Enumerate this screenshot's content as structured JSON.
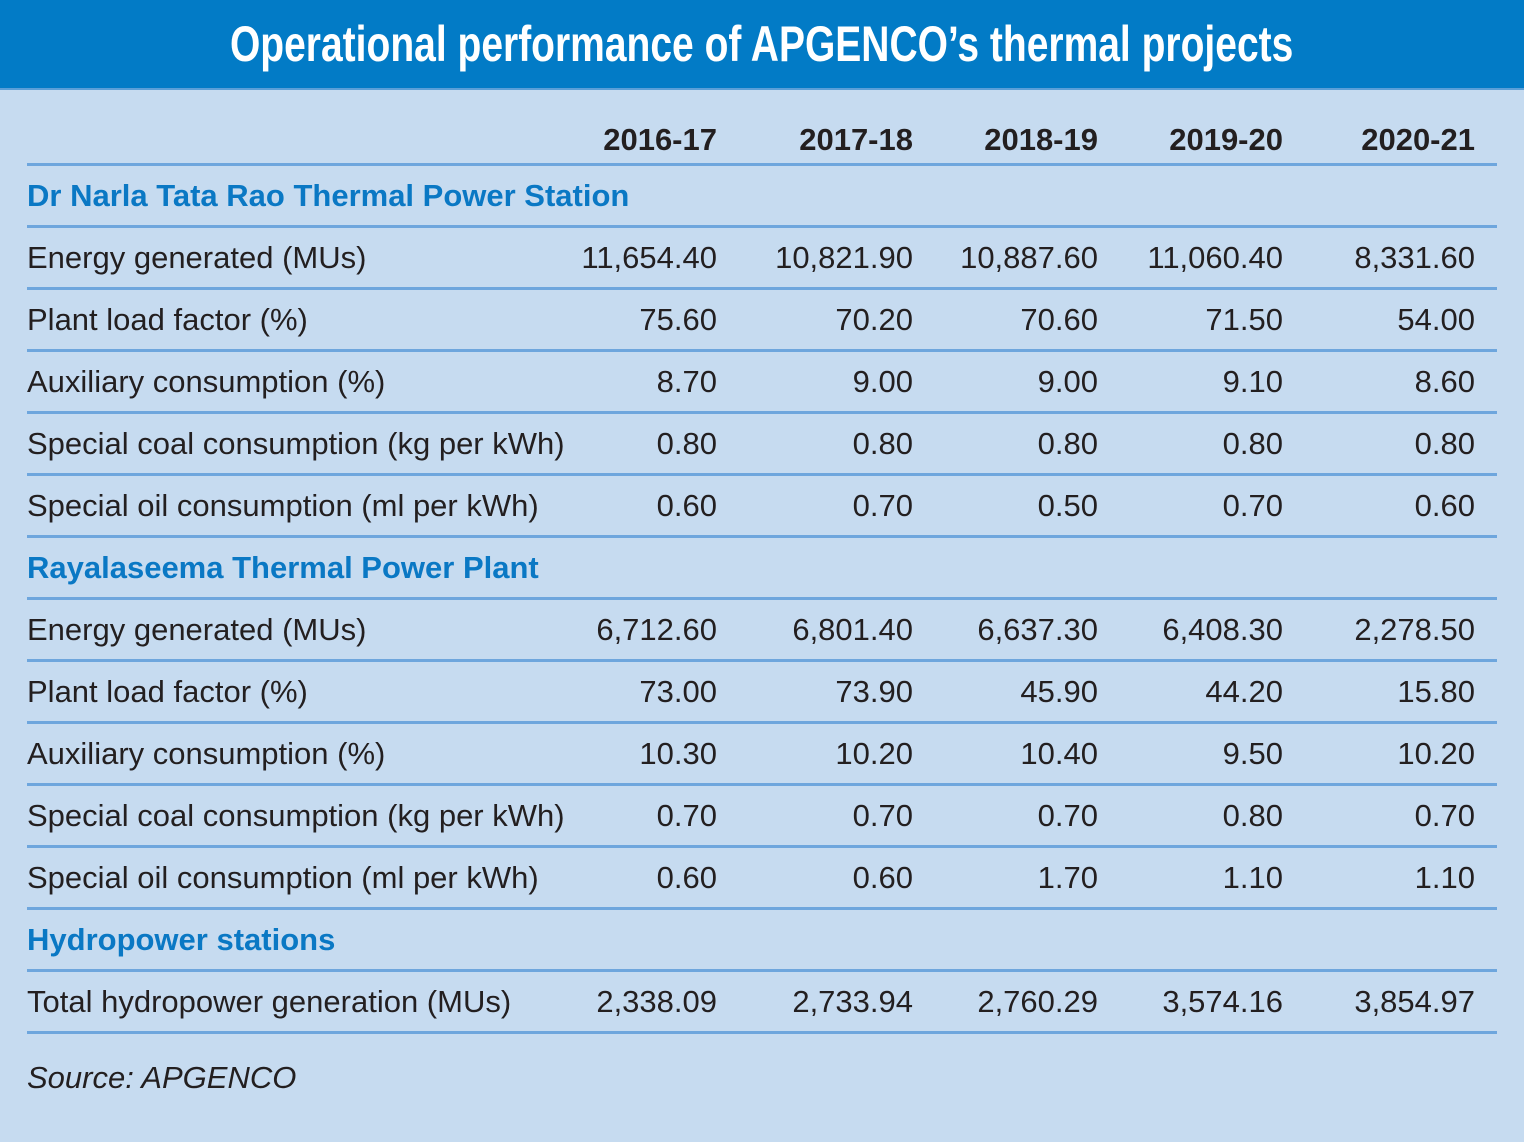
{
  "title": "Operational performance of APGENCO’s thermal projects",
  "columns": [
    "2016-17",
    "2017-18",
    "2018-19",
    "2019-20",
    "2020-21"
  ],
  "sections": [
    {
      "name": "Dr Narla Tata Rao Thermal Power Station",
      "rows": [
        {
          "label": "Energy generated (MUs)",
          "values": [
            "11,654.40",
            "10,821.90",
            "10,887.60",
            "11,060.40",
            "8,331.60"
          ]
        },
        {
          "label": "Plant load factor (%)",
          "values": [
            "75.60",
            "70.20",
            "70.60",
            "71.50",
            "54.00"
          ]
        },
        {
          "label": "Auxiliary consumption (%)",
          "values": [
            "8.70",
            "9.00",
            "9.00",
            "9.10",
            "8.60"
          ]
        },
        {
          "label": "Special coal consumption (kg per kWh)",
          "values": [
            "0.80",
            "0.80",
            "0.80",
            "0.80",
            "0.80"
          ]
        },
        {
          "label": "Special oil consumption (ml per kWh)",
          "values": [
            "0.60",
            "0.70",
            "0.50",
            "0.70",
            "0.60"
          ]
        }
      ]
    },
    {
      "name": "Rayalaseema Thermal Power Plant",
      "rows": [
        {
          "label": "Energy generated (MUs)",
          "values": [
            "6,712.60",
            "6,801.40",
            "6,637.30",
            "6,408.30",
            "2,278.50"
          ]
        },
        {
          "label": "Plant load factor (%)",
          "values": [
            "73.00",
            "73.90",
            "45.90",
            "44.20",
            "15.80"
          ]
        },
        {
          "label": "Auxiliary consumption (%)",
          "values": [
            "10.30",
            "10.20",
            "10.40",
            "9.50",
            "10.20"
          ]
        },
        {
          "label": "Special coal consumption (kg per kWh)",
          "values": [
            "0.70",
            "0.70",
            "0.70",
            "0.80",
            "0.70"
          ]
        },
        {
          "label": "Special oil consumption (ml per kWh)",
          "values": [
            "0.60",
            "0.60",
            "1.70",
            "1.10",
            "1.10"
          ]
        }
      ]
    },
    {
      "name": "Hydropower stations",
      "rows": [
        {
          "label": "Total hydropower generation (MUs)",
          "values": [
            "2,338.09",
            "2,733.94",
            "2,760.29",
            "3,574.16",
            "3,854.97"
          ]
        }
      ]
    }
  ],
  "source": "Source: APGENCO",
  "colors": {
    "title_bg": "#027bc6",
    "panel_bg": "#c6dbf0",
    "section_text": "#0a78c4",
    "rule": "#6ea6dd",
    "text": "#231f20"
  },
  "chart_data": {
    "type": "table",
    "title": "Operational performance of APGENCO’s thermal projects",
    "categories": [
      "2016-17",
      "2017-18",
      "2018-19",
      "2019-20",
      "2020-21"
    ],
    "groups": [
      {
        "name": "Dr Narla Tata Rao Thermal Power Station",
        "series": [
          {
            "name": "Energy generated (MUs)",
            "values": [
              11654.4,
              10821.9,
              10887.6,
              11060.4,
              8331.6
            ]
          },
          {
            "name": "Plant load factor (%)",
            "values": [
              75.6,
              70.2,
              70.6,
              71.5,
              54.0
            ]
          },
          {
            "name": "Auxiliary consumption (%)",
            "values": [
              8.7,
              9.0,
              9.0,
              9.1,
              8.6
            ]
          },
          {
            "name": "Special coal consumption (kg per kWh)",
            "values": [
              0.8,
              0.8,
              0.8,
              0.8,
              0.8
            ]
          },
          {
            "name": "Special oil consumption (ml per kWh)",
            "values": [
              0.6,
              0.7,
              0.5,
              0.7,
              0.6
            ]
          }
        ]
      },
      {
        "name": "Rayalaseema Thermal Power Plant",
        "series": [
          {
            "name": "Energy generated (MUs)",
            "values": [
              6712.6,
              6801.4,
              6637.3,
              6408.3,
              2278.5
            ]
          },
          {
            "name": "Plant load factor (%)",
            "values": [
              73.0,
              73.9,
              45.9,
              44.2,
              15.8
            ]
          },
          {
            "name": "Auxiliary consumption (%)",
            "values": [
              10.3,
              10.2,
              10.4,
              9.5,
              10.2
            ]
          },
          {
            "name": "Special coal consumption (kg per kWh)",
            "values": [
              0.7,
              0.7,
              0.7,
              0.8,
              0.7
            ]
          },
          {
            "name": "Special oil consumption (ml per kWh)",
            "values": [
              0.6,
              0.6,
              1.7,
              1.1,
              1.1
            ]
          }
        ]
      },
      {
        "name": "Hydropower stations",
        "series": [
          {
            "name": "Total hydropower generation (MUs)",
            "values": [
              2338.09,
              2733.94,
              2760.29,
              3574.16,
              3854.97
            ]
          }
        ]
      }
    ],
    "source": "Source: APGENCO"
  }
}
